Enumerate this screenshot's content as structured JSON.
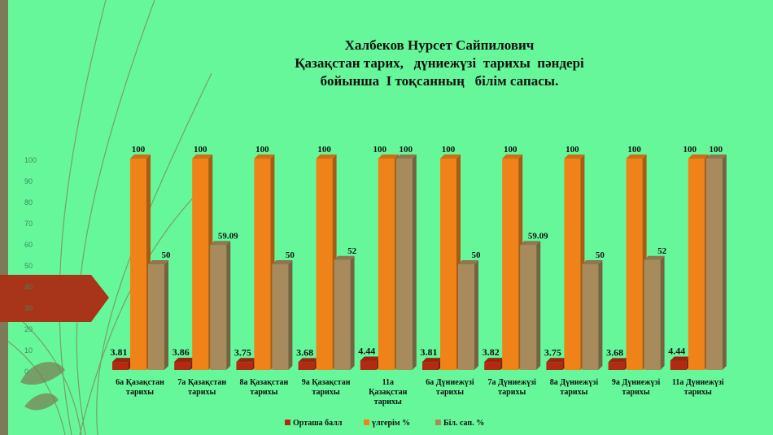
{
  "chart_data": {
    "type": "bar",
    "title_lines": [
      "Халбеков Нурсет Сайпилович",
      "Қазақстан тарих,   дүниежүзі  тарихы  пәндері",
      "бойынша  І тоқсанның   білім сапасы."
    ],
    "categories": [
      [
        "6а Қазақстан",
        "тарихы"
      ],
      [
        "7а  Қазақстан",
        "тарихы"
      ],
      [
        "8а  Қазақстан",
        "тарихы"
      ],
      [
        "9а  Қазақстан",
        "тарихы"
      ],
      [
        "11а",
        "Қазақстан",
        "тарихы"
      ],
      [
        "6а  Дүниежүзі",
        "тарихы"
      ],
      [
        "7а Дүниежүзі",
        "тарихы"
      ],
      [
        "8а Дүниежүзі",
        "тарихы"
      ],
      [
        "9а Дүниежүзі",
        "тарихы"
      ],
      [
        "11а Дүниежүзі",
        "тарихы"
      ]
    ],
    "series": [
      {
        "name": "Орташа балл",
        "color": "#b32a12",
        "values": [
          3.81,
          3.86,
          3.75,
          3.68,
          4.44,
          3.81,
          3.82,
          3.75,
          3.68,
          4.44
        ]
      },
      {
        "name": "үлгерім %",
        "color": "#f0821a",
        "values": [
          100,
          100,
          100,
          100,
          100,
          100,
          100,
          100,
          100,
          100
        ]
      },
      {
        "name": "Біл. сап. %",
        "color": "#a88b5c",
        "values": [
          50,
          59.09,
          50,
          52,
          100,
          50,
          59.09,
          50,
          52,
          100
        ]
      }
    ],
    "value_labels": {
      "s0": [
        "3.81",
        "3.86",
        "3.75",
        "3.68",
        "4.44",
        "3.81",
        "3.82",
        "3.75",
        "3.68",
        "4.44"
      ],
      "s1": [
        "100",
        "100",
        "100",
        "100",
        "100",
        "100",
        "100",
        "100",
        "100",
        "100"
      ],
      "s2": [
        "50",
        "59.09",
        "50",
        "52",
        "100",
        "50",
        "59.09",
        "50",
        "52",
        "100"
      ]
    },
    "yticks": [
      "0",
      "10",
      "20",
      "30",
      "40",
      "50",
      "60",
      "70",
      "80",
      "90",
      "100"
    ],
    "ylim": [
      0,
      100
    ],
    "legend_position": "bottom",
    "grid": false
  }
}
